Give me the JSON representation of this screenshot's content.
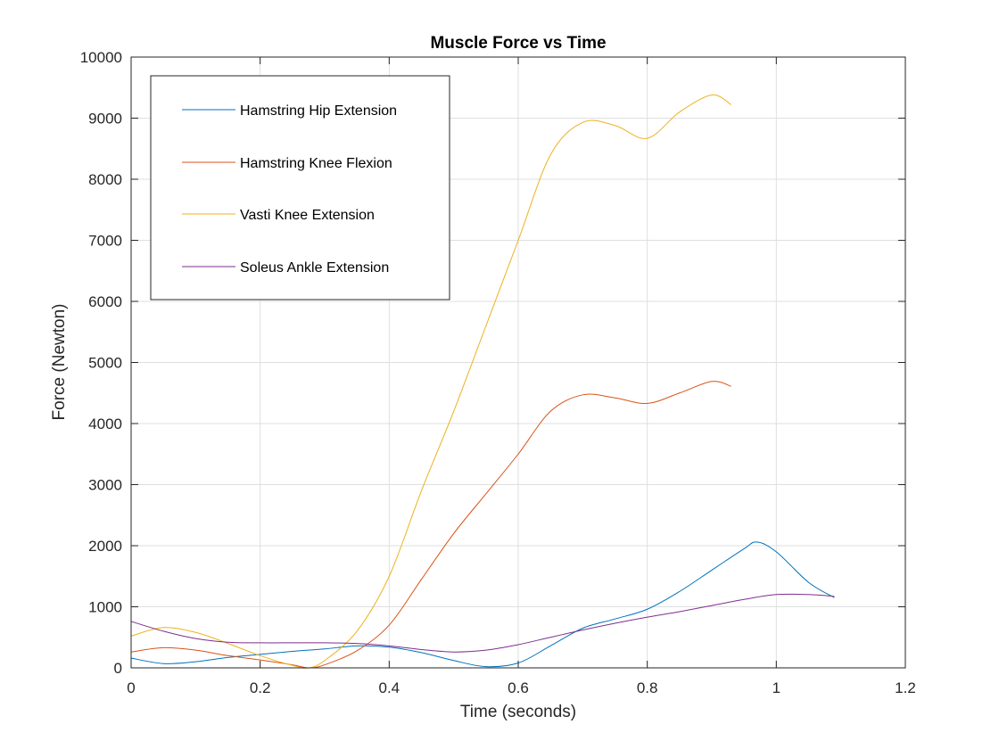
{
  "chart_data": {
    "type": "line",
    "title": "Muscle Force vs Time",
    "xlabel": "Time (seconds)",
    "ylabel": "Force (Newton)",
    "xlim": [
      0,
      1.2
    ],
    "ylim": [
      0,
      10000
    ],
    "xticks": [
      0,
      0.2,
      0.4,
      0.6,
      0.8,
      1,
      1.2
    ],
    "xtick_labels": [
      "0",
      "0.2",
      "0.4",
      "0.6",
      "0.8",
      "1",
      "1.2"
    ],
    "yticks": [
      0,
      1000,
      2000,
      3000,
      4000,
      5000,
      6000,
      7000,
      8000,
      9000,
      10000
    ],
    "ytick_labels": [
      "0",
      "1000",
      "2000",
      "3000",
      "4000",
      "5000",
      "6000",
      "7000",
      "8000",
      "9000",
      "10000"
    ],
    "grid": true,
    "legend_position": "top-left",
    "series": [
      {
        "name": "Hamstring Hip Extension",
        "color": "#0072BD",
        "x": [
          0,
          0.05,
          0.1,
          0.15,
          0.2,
          0.25,
          0.3,
          0.35,
          0.4,
          0.45,
          0.5,
          0.55,
          0.6,
          0.65,
          0.7,
          0.75,
          0.8,
          0.85,
          0.9,
          0.95,
          0.97,
          1.0,
          1.05,
          1.09
        ],
        "y": [
          160,
          70,
          100,
          170,
          220,
          270,
          310,
          360,
          340,
          250,
          120,
          20,
          80,
          360,
          650,
          800,
          960,
          1250,
          1600,
          1950,
          2060,
          1900,
          1400,
          1150
        ]
      },
      {
        "name": "Hamstring Knee Flexion",
        "color": "#D95319",
        "x": [
          0,
          0.05,
          0.1,
          0.15,
          0.2,
          0.25,
          0.275,
          0.3,
          0.35,
          0.4,
          0.45,
          0.5,
          0.55,
          0.6,
          0.65,
          0.7,
          0.75,
          0.8,
          0.85,
          0.9,
          0.93
        ],
        "y": [
          260,
          330,
          290,
          200,
          130,
          50,
          0,
          50,
          280,
          700,
          1450,
          2200,
          2850,
          3500,
          4200,
          4470,
          4420,
          4330,
          4500,
          4690,
          4610
        ]
      },
      {
        "name": "Vasti Knee Extension",
        "color": "#EDB120",
        "x": [
          0,
          0.05,
          0.1,
          0.15,
          0.2,
          0.25,
          0.275,
          0.3,
          0.35,
          0.4,
          0.45,
          0.5,
          0.55,
          0.6,
          0.65,
          0.7,
          0.75,
          0.8,
          0.85,
          0.9,
          0.93
        ],
        "y": [
          520,
          660,
          580,
          400,
          200,
          40,
          0,
          120,
          600,
          1500,
          2900,
          4200,
          5600,
          7000,
          8400,
          8930,
          8880,
          8670,
          9100,
          9380,
          9220
        ]
      },
      {
        "name": "Soleus Ankle Extension",
        "color": "#7E2F8E",
        "x": [
          0,
          0.05,
          0.1,
          0.15,
          0.2,
          0.25,
          0.3,
          0.35,
          0.4,
          0.45,
          0.5,
          0.55,
          0.6,
          0.65,
          0.7,
          0.75,
          0.8,
          0.85,
          0.9,
          0.95,
          1.0,
          1.05,
          1.09
        ],
        "y": [
          760,
          600,
          480,
          420,
          410,
          410,
          410,
          400,
          360,
          300,
          260,
          290,
          380,
          500,
          620,
          730,
          830,
          920,
          1020,
          1120,
          1200,
          1200,
          1170
        ]
      }
    ]
  }
}
